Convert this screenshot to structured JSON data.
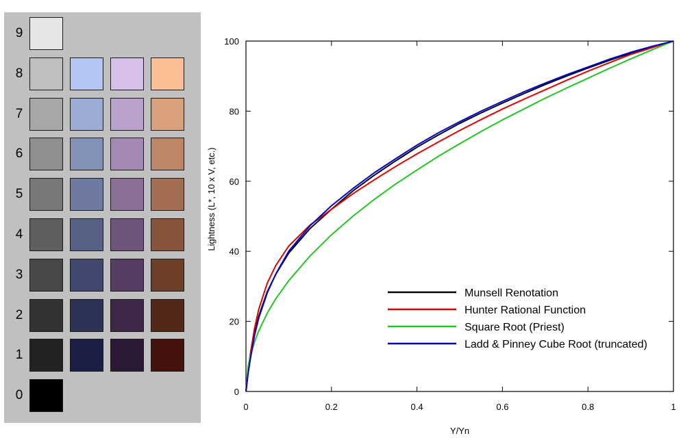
{
  "swatches": {
    "rows": [
      {
        "label": "9",
        "colors": [
          "#e6e6e6"
        ]
      },
      {
        "label": "8",
        "colors": [
          "#bfbfbf",
          "#b5c6f3",
          "#d6bfea",
          "#fbbf96"
        ]
      },
      {
        "label": "7",
        "colors": [
          "#a7a7a7",
          "#9dacd4",
          "#b9a2cd",
          "#d9a07e"
        ]
      },
      {
        "label": "6",
        "colors": [
          "#8f8f8f",
          "#8492ba",
          "#a288b2",
          "#bd8666"
        ]
      },
      {
        "label": "5",
        "colors": [
          "#787878",
          "#6e7aa0",
          "#8a6f97",
          "#a26d50"
        ]
      },
      {
        "label": "4",
        "colors": [
          "#5f5f5f",
          "#576085",
          "#6e557c",
          "#86553c"
        ]
      },
      {
        "label": "3",
        "colors": [
          "#484848",
          "#404870",
          "#563d62",
          "#6d3f29"
        ]
      },
      {
        "label": "2",
        "colors": [
          "#333333",
          "#2d3257",
          "#3e2848",
          "#532818"
        ]
      },
      {
        "label": "1",
        "colors": [
          "#232323",
          "#1c1f45",
          "#2b1935",
          "#43120c"
        ]
      },
      {
        "label": "0",
        "colors": [
          "#000000"
        ]
      }
    ]
  },
  "chart_data": {
    "type": "line",
    "xlabel": "Y/Yn",
    "ylabel": "Lightness (L*, 10 x V, etc.)",
    "xlim": [
      0,
      1
    ],
    "ylim": [
      0,
      100
    ],
    "xticks": [
      "0",
      "0.2",
      "0.4",
      "0.6",
      "0.8",
      "1"
    ],
    "yticks": [
      "0",
      "20",
      "40",
      "60",
      "80",
      "100"
    ],
    "grid": false,
    "legend_position": "bottom-right",
    "x": [
      0,
      0.005,
      0.01,
      0.02,
      0.03,
      0.05,
      0.07,
      0.1,
      0.15,
      0.2,
      0.25,
      0.3,
      0.35,
      0.4,
      0.45,
      0.5,
      0.55,
      0.6,
      0.65,
      0.7,
      0.75,
      0.8,
      0.85,
      0.9,
      0.95,
      1
    ],
    "series": [
      {
        "name": "Munsell Renotation",
        "color": "#000000",
        "values": [
          0,
          5.5,
          9.5,
          16.5,
          21.5,
          28.5,
          33.5,
          39.5,
          46.5,
          52,
          57.2,
          61.7,
          65.8,
          69.7,
          73.2,
          76.5,
          79.5,
          82.3,
          85,
          87.6,
          90,
          92.3,
          94.5,
          96.5,
          98.3,
          100
        ]
      },
      {
        "name": "Hunter Rational Function",
        "color": "#e00000",
        "values": [
          0,
          6,
          10.5,
          18,
          23.5,
          31,
          36,
          41.5,
          47.5,
          52,
          56.4,
          60.4,
          64.2,
          67.8,
          71.2,
          74.5,
          77.6,
          80.6,
          83.4,
          86.1,
          88.8,
          91.4,
          93.8,
          96.2,
          98.1,
          100
        ]
      },
      {
        "name": "Square Root (Priest)",
        "color": "#22c422",
        "values": [
          0,
          7.1,
          10,
          14.1,
          17.3,
          22.4,
          26.5,
          31.6,
          38.7,
          44.7,
          50,
          54.8,
          59.2,
          63.2,
          67.1,
          70.7,
          74.2,
          77.5,
          80.6,
          83.7,
          86.6,
          89.4,
          92.2,
          94.9,
          97.5,
          100
        ]
      },
      {
        "name": "Ladd & Pinney Cube Root (truncated)",
        "color": "#0000c8",
        "values": [
          0,
          5,
          9,
          16,
          21,
          28.2,
          33.6,
          40,
          47.3,
          53,
          57.9,
          62.4,
          66.4,
          70.3,
          73.8,
          77,
          80,
          82.8,
          85.5,
          88,
          90.4,
          92.6,
          94.8,
          96.8,
          98.5,
          100
        ]
      }
    ]
  }
}
